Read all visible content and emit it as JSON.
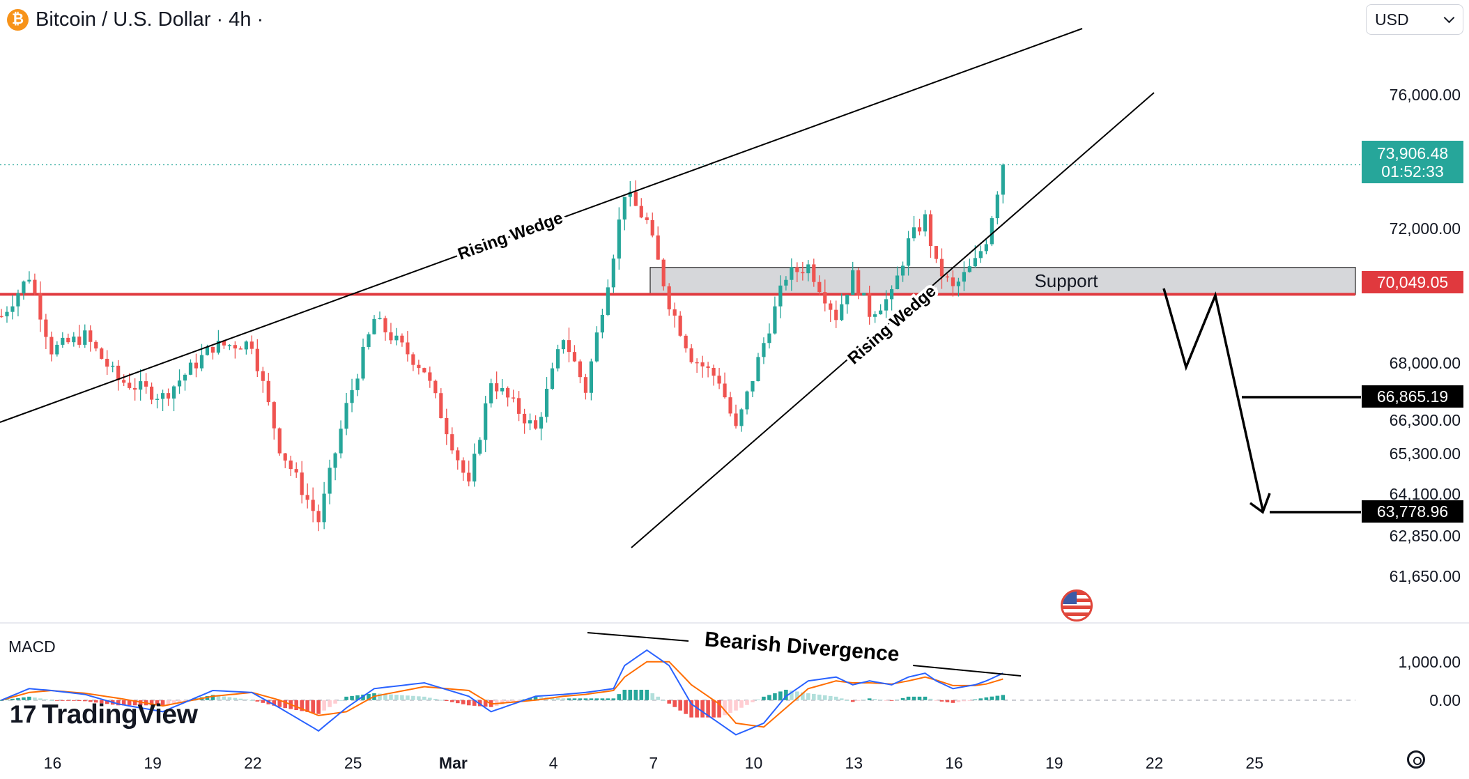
{
  "header": {
    "symbol_icon": "bitcoin-icon",
    "title": "Bitcoin / U.S. Dollar · 4h ·"
  },
  "currency_select": {
    "value": "USD"
  },
  "macd_label": "MACD",
  "logo": {
    "mark": "17",
    "text": "TradingView"
  },
  "colors": {
    "up": "#26a69a",
    "down": "#ef5350",
    "support_line": "#e0393e",
    "support_zone": "#d6d7da",
    "macd_line": "#2962ff",
    "signal_line": "#ff6d00",
    "price_tag": "#26a69a"
  },
  "chart_data": [
    {
      "type": "candlestick",
      "title": "Bitcoin / U.S. Dollar · 4h ·",
      "x_ticks": [
        "16",
        "19",
        "22",
        "25",
        "Mar",
        "4",
        "7",
        "10",
        "13",
        "16",
        "19",
        "22",
        "25"
      ],
      "y_ticks": [
        "76,000.00",
        "72,000.00",
        "68,000.00",
        "66,300.00",
        "65,300.00",
        "64,100.00",
        "62,850.00",
        "61,650.00"
      ],
      "y_range": [
        61300,
        77500
      ],
      "current_price": {
        "value": "73,906.48",
        "countdown": "01:52:33"
      },
      "support_level": {
        "value": "70,049.05"
      },
      "targets": [
        {
          "value": "66,865.19"
        },
        {
          "value": "63,778.96"
        }
      ],
      "annotations": {
        "upper_line": "Rising Wedge",
        "lower_line": "Rising Wedge",
        "zone": "Support",
        "macd_divergence": "Bearish Divergence"
      },
      "pivots": [
        {
          "t": 0,
          "p": 69400
        },
        {
          "t": 5,
          "p": 70600
        },
        {
          "t": 9,
          "p": 68400
        },
        {
          "t": 15,
          "p": 68800
        },
        {
          "t": 21,
          "p": 67500
        },
        {
          "t": 29,
          "p": 67000
        },
        {
          "t": 38,
          "p": 68500
        },
        {
          "t": 45,
          "p": 68600
        },
        {
          "t": 50,
          "p": 65500
        },
        {
          "t": 57,
          "p": 63300
        },
        {
          "t": 62,
          "p": 66700
        },
        {
          "t": 67,
          "p": 69300
        },
        {
          "t": 76,
          "p": 67800
        },
        {
          "t": 84,
          "p": 64300
        },
        {
          "t": 88,
          "p": 67500
        },
        {
          "t": 96,
          "p": 66000
        },
        {
          "t": 101,
          "p": 68800
        },
        {
          "t": 105,
          "p": 67200
        },
        {
          "t": 110,
          "p": 71300
        },
        {
          "t": 112,
          "p": 73100
        },
        {
          "t": 116,
          "p": 72200
        },
        {
          "t": 120,
          "p": 69800
        },
        {
          "t": 124,
          "p": 68200
        },
        {
          "t": 129,
          "p": 67500
        },
        {
          "t": 132,
          "p": 66000
        },
        {
          "t": 137,
          "p": 68600
        },
        {
          "t": 141,
          "p": 70600
        },
        {
          "t": 145,
          "p": 70900
        },
        {
          "t": 150,
          "p": 69400
        },
        {
          "t": 153,
          "p": 70600
        },
        {
          "t": 156,
          "p": 69500
        },
        {
          "t": 160,
          "p": 70000
        },
        {
          "t": 163,
          "p": 71600
        },
        {
          "t": 166,
          "p": 72300
        },
        {
          "t": 168,
          "p": 70900
        },
        {
          "t": 171,
          "p": 70200
        },
        {
          "t": 175,
          "p": 71000
        },
        {
          "t": 177,
          "p": 71700
        },
        {
          "t": 180,
          "p": 73900
        }
      ]
    },
    {
      "type": "line",
      "title": "MACD",
      "y_ticks": [
        "1,000.00",
        "0.00"
      ],
      "y_range": [
        -1000,
        1900
      ],
      "series": [
        {
          "key": "macd",
          "values_at_pivots": [
            0,
            300,
            250,
            150,
            -100,
            -300,
            250,
            200,
            -200,
            -800,
            -200,
            300,
            450,
            100,
            -300,
            100,
            150,
            200,
            300,
            900,
            1300,
            900,
            -100,
            -600,
            -900,
            -600,
            100,
            500,
            600,
            400,
            500,
            400,
            600,
            700,
            500,
            300,
            400,
            500,
            700
          ]
        },
        {
          "key": "signal",
          "values_at_pivots": [
            0,
            200,
            250,
            180,
            50,
            -150,
            100,
            200,
            0,
            -400,
            -300,
            100,
            350,
            250,
            -100,
            0,
            100,
            150,
            250,
            600,
            1000,
            1000,
            400,
            -100,
            -600,
            -700,
            -200,
            300,
            500,
            450,
            450,
            420,
            500,
            600,
            520,
            380,
            380,
            420,
            550
          ]
        }
      ]
    }
  ]
}
